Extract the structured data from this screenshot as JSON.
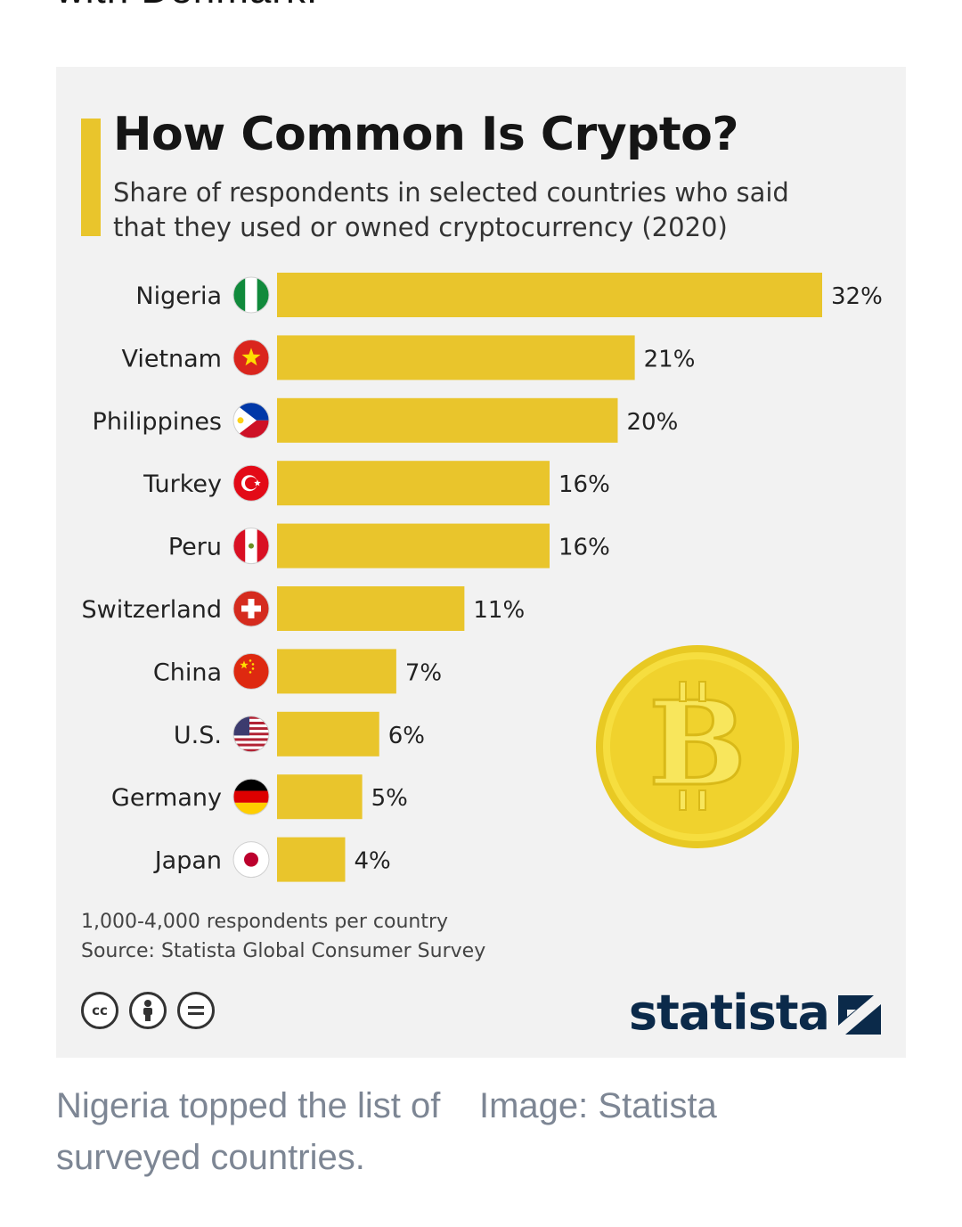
{
  "top_text": "with Denmark.",
  "chart_data": {
    "type": "bar",
    "orientation": "horizontal",
    "title": "How Common Is Crypto?",
    "subtitle": "Share of respondents in selected countries who said that they used or owned cryptocurrency (2020)",
    "categories": [
      "Nigeria",
      "Vietnam",
      "Philippines",
      "Turkey",
      "Peru",
      "Switzerland",
      "China",
      "U.S.",
      "Germany",
      "Japan"
    ],
    "values": [
      32,
      21,
      20,
      16,
      16,
      11,
      7,
      6,
      5,
      4
    ],
    "labels": [
      "32%",
      "21%",
      "20%",
      "16%",
      "16%",
      "11%",
      "7%",
      "6%",
      "5%",
      "4%"
    ],
    "unit": "%",
    "xlim": [
      0,
      32
    ],
    "bar_color": "#e9c52c",
    "grid": false
  },
  "flags": [
    "nigeria-flag-icon",
    "vietnam-flag-icon",
    "philippines-flag-icon",
    "turkey-flag-icon",
    "peru-flag-icon",
    "switzerland-flag-icon",
    "china-flag-icon",
    "us-flag-icon",
    "germany-flag-icon",
    "japan-flag-icon"
  ],
  "footer": {
    "respondents": "1,000-4,000 respondents per country",
    "source": "Source: Statista Global Consumer Survey"
  },
  "license_icons": [
    "cc-icon",
    "attribution-icon",
    "no-derivatives-icon"
  ],
  "brand": "statista",
  "caption": {
    "text": "Nigeria topped the list of surveyed countries.",
    "credit": "Image: Statista"
  },
  "colors": {
    "accent": "#e9c52c",
    "background": "#f2f2f2",
    "brand": "#0b2a4a",
    "caption": "#7d8694"
  }
}
